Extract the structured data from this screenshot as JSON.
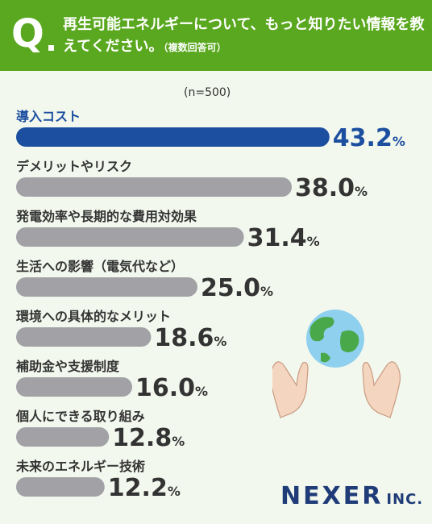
{
  "header": {
    "q": "Q",
    "question": "再生可能エネルギーについて、もっと知りたい情報を教えてください。",
    "note": "（複数回答可）"
  },
  "sample": "(n=500)",
  "colors": {
    "header": "#5aa81f",
    "top_bar": "#1d4fa0",
    "bar": "#a1a1a6",
    "text": "#333333"
  },
  "chart_data": {
    "type": "bar",
    "orientation": "horizontal",
    "categories": [
      "導入コスト",
      "デメリットやリスク",
      "発電効率や長期的な費用対効果",
      "生活への影響（電気代など）",
      "環境への具体的なメリット",
      "補助金や支援制度",
      "個人にできる取り組み",
      "未来のエネルギー技術"
    ],
    "values": [
      43.2,
      38.0,
      31.4,
      25.0,
      18.6,
      16.0,
      12.8,
      12.2
    ],
    "value_labels": [
      "43.2",
      "38.0",
      "31.4",
      "25.0",
      "18.6",
      "16.0",
      "12.8",
      "12.2"
    ],
    "unit": "%",
    "highlight_index": 0,
    "grid": false,
    "legend": "none"
  },
  "logo": {
    "main": "NEXER",
    "inc": "INC."
  },
  "icons": [
    "earth-icon",
    "hands-icon"
  ]
}
